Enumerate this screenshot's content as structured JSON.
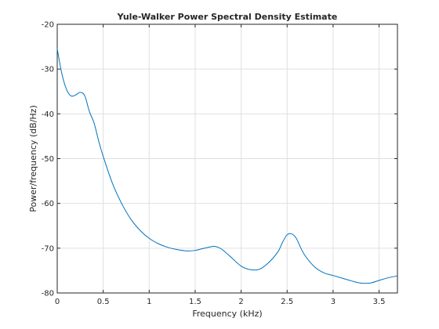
{
  "chart_data": {
    "type": "line",
    "title": "Yule-Walker Power Spectral Density Estimate",
    "xlabel": "Frequency (kHz)",
    "ylabel": "Power/frequency (dB/Hz)",
    "xlim": [
      0,
      3.7
    ],
    "ylim": [
      -80,
      -20
    ],
    "xticks": [
      0,
      0.5,
      1,
      1.5,
      2,
      2.5,
      3,
      3.5
    ],
    "xtick_labels": [
      "0",
      "0.5",
      "1",
      "1.5",
      "2",
      "2.5",
      "3",
      "3.5"
    ],
    "yticks": [
      -80,
      -70,
      -60,
      -50,
      -40,
      -30,
      -20
    ],
    "ytick_labels": [
      "-80",
      "-70",
      "-60",
      "-50",
      "-40",
      "-30",
      "-20"
    ],
    "grid": true,
    "series": [
      {
        "color": "#0072bd",
        "x": [
          0,
          0.05,
          0.1,
          0.15,
          0.2,
          0.25,
          0.3,
          0.35,
          0.4,
          0.45,
          0.5,
          0.6,
          0.7,
          0.8,
          0.9,
          1.0,
          1.1,
          1.2,
          1.3,
          1.4,
          1.5,
          1.6,
          1.7,
          1.75,
          1.8,
          1.9,
          2.0,
          2.1,
          2.2,
          2.3,
          2.4,
          2.45,
          2.5,
          2.55,
          2.6,
          2.65,
          2.7,
          2.8,
          2.9,
          3.0,
          3.1,
          3.2,
          3.3,
          3.4,
          3.5,
          3.6,
          3.7
        ],
        "y": [
          -25.5,
          -31,
          -34.5,
          -36,
          -35.8,
          -35.2,
          -36,
          -39.5,
          -42,
          -46,
          -49.5,
          -55.5,
          -60,
          -63.5,
          -66,
          -67.8,
          -69,
          -69.8,
          -70.3,
          -70.6,
          -70.5,
          -70,
          -69.6,
          -69.8,
          -70.4,
          -72.2,
          -74,
          -74.8,
          -74.7,
          -73.2,
          -70.8,
          -68.7,
          -67,
          -66.8,
          -67.8,
          -70,
          -71.8,
          -74.2,
          -75.5,
          -76.1,
          -76.7,
          -77.3,
          -77.8,
          -77.8,
          -77.2,
          -76.6,
          -76.2
        ]
      }
    ]
  }
}
